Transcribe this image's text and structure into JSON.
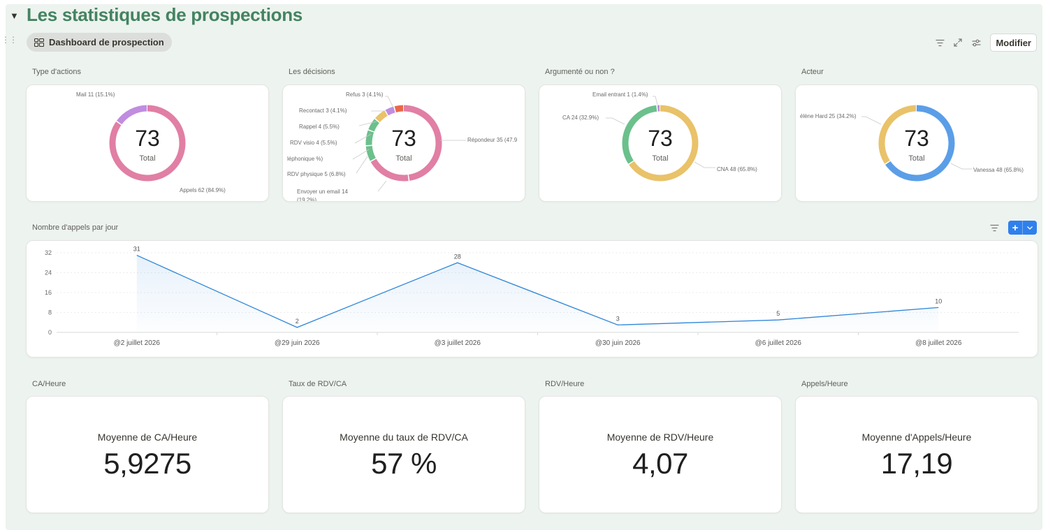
{
  "page": {
    "title": "Les statistiques de prospections"
  },
  "view_tab": {
    "label": "Dashboard de prospection"
  },
  "toolbar": {
    "modify_label": "Modifier"
  },
  "donuts": [
    {
      "section": "Type d'actions",
      "total": "73",
      "total_label": "Total",
      "slices": [
        {
          "label": "Appels 62 (84.9%)",
          "value": 62,
          "color": "#e17fa4"
        },
        {
          "label": "Mail 11 (15.1%)",
          "value": 11,
          "color": "#c08de0"
        }
      ]
    },
    {
      "section": "Les décisions",
      "total": "73",
      "total_label": "Total",
      "slices": [
        {
          "label": "Répondeur 35 (47.9",
          "value": 35,
          "color": "#e17fa4"
        },
        {
          "label": "Envoyer un email 14 (19.2%)",
          "value": 14,
          "color": "#e17fa4"
        },
        {
          "label": "léphonique %)",
          "value": 5,
          "color": "#6cc08c"
        },
        {
          "label": "RDV physique 5 (6.8%)",
          "value": 5,
          "color": "#6cc08c"
        },
        {
          "label": "RDV visio 4 (5.5%)",
          "value": 4,
          "color": "#6cc08c"
        },
        {
          "label": "Rappel 4 (5.5%)",
          "value": 4,
          "color": "#e9c269"
        },
        {
          "label": "Recontact 3 (4.1%)",
          "value": 3,
          "color": "#c08de0"
        },
        {
          "label": "Refus 3 (4.1%)",
          "value": 3,
          "color": "#e8684a"
        }
      ]
    },
    {
      "section": "Argumenté ou non ?",
      "total": "73",
      "total_label": "Total",
      "slices": [
        {
          "label": "CNA 48 (65.8%)",
          "value": 48,
          "color": "#e9c269"
        },
        {
          "label": "CA 24 (32.9%)",
          "value": 24,
          "color": "#6cc08c"
        },
        {
          "label": "Email entrant 1 (1.4%)",
          "value": 1,
          "color": "#c08de0"
        }
      ]
    },
    {
      "section": "Acteur",
      "total": "73",
      "total_label": "Total",
      "slices": [
        {
          "label": "Vanessa 48 (65.8%)",
          "value": 48,
          "color": "#5b9ee8"
        },
        {
          "label": "élène Hard 25 (34.2%)",
          "value": 25,
          "color": "#e9c269"
        }
      ]
    }
  ],
  "line_section": {
    "label": "Nombre d'appels par jour"
  },
  "chart_data": {
    "type": "area",
    "title": "Nombre d'appels par jour",
    "categories": [
      "@2 juillet 2026",
      "@29 juin 2026",
      "@3 juillet 2026",
      "@30 juin 2026",
      "@6 juillet 2026",
      "@8 juillet 2026"
    ],
    "values": [
      31,
      2,
      28,
      3,
      5,
      10
    ],
    "ylim": [
      0,
      32
    ],
    "yticks": [
      "0",
      "8",
      "16",
      "24",
      "32"
    ],
    "grid": true,
    "color": "#2f86d8"
  },
  "kpis": [
    {
      "section": "CA/Heure",
      "label": "Moyenne de CA/Heure",
      "value": "5,9275"
    },
    {
      "section": "Taux de RDV/CA",
      "label": "Moyenne du taux de RDV/CA",
      "value": "57 %"
    },
    {
      "section": "RDV/Heure",
      "label": "Moyenne de RDV/Heure",
      "value": "4,07"
    },
    {
      "section": "Appels/Heure",
      "label": "Moyenne d'Appels/Heure",
      "value": "17,19"
    }
  ]
}
